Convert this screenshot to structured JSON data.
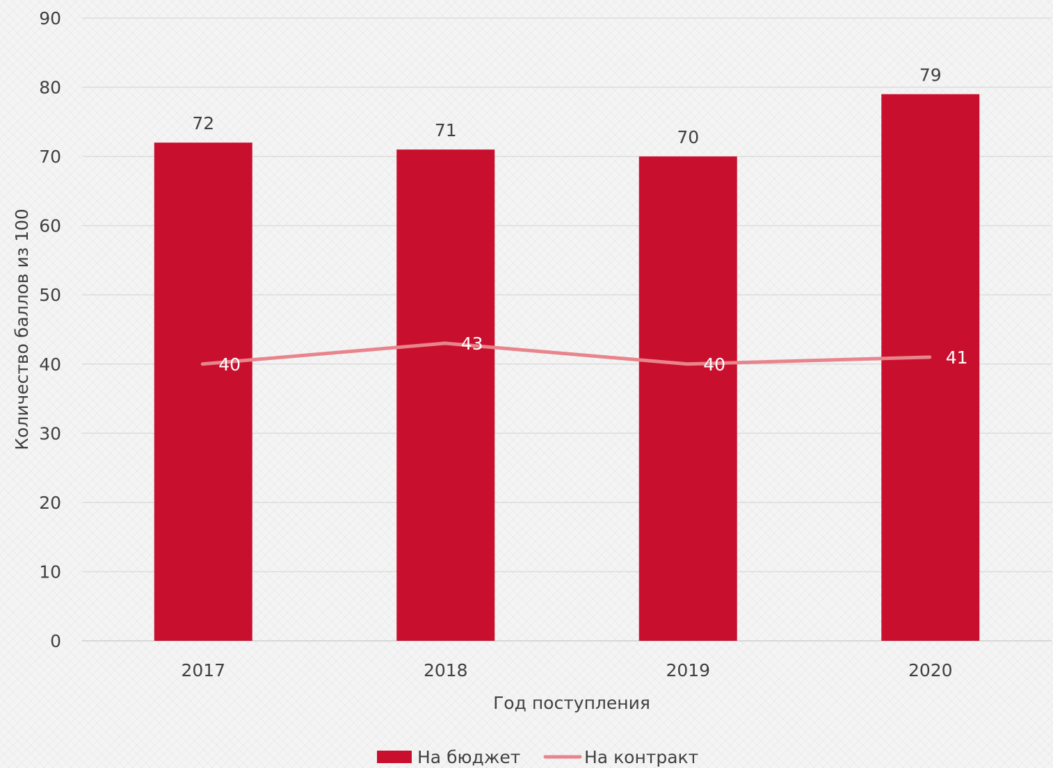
{
  "chart_data": {
    "type": "bar",
    "categories": [
      "2017",
      "2018",
      "2019",
      "2020"
    ],
    "series": [
      {
        "name": "На бюджет",
        "kind": "bar",
        "values": [
          72,
          71,
          70,
          79
        ],
        "color": "#c8102e"
      },
      {
        "name": "На контракт",
        "kind": "line",
        "values": [
          40,
          43,
          40,
          41
        ],
        "color": "#e8848c"
      }
    ],
    "xlabel": "Год поступления",
    "ylabel": "Количество баллов из 100",
    "ylim": [
      0,
      90
    ],
    "yticks": [
      0,
      10,
      20,
      30,
      40,
      50,
      60,
      70,
      80,
      90
    ],
    "grid": true,
    "legend_position": "bottom-center"
  }
}
